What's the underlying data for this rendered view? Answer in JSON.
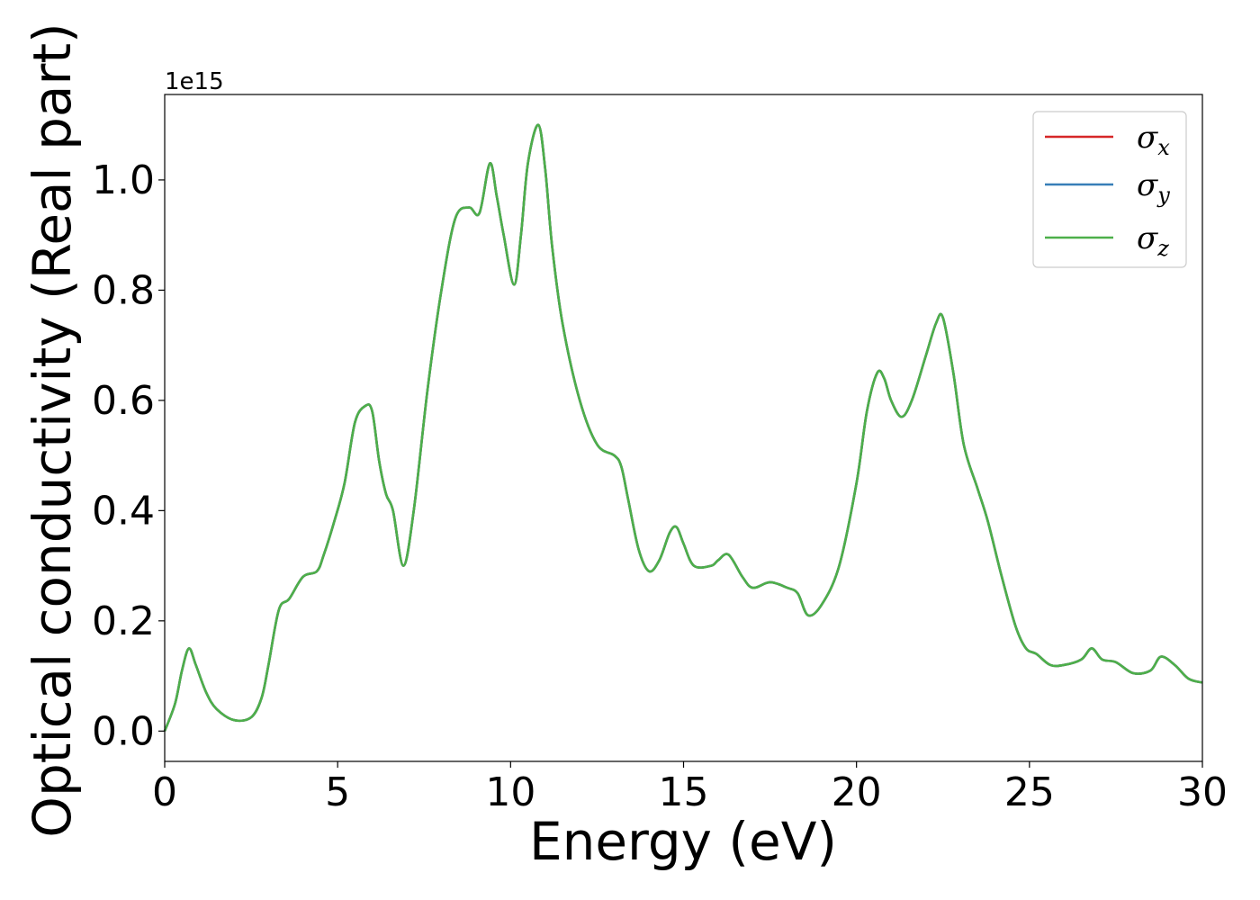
{
  "chart_data": {
    "type": "line",
    "xlabel": "Energy (eV)",
    "ylabel": "Optical conductivity (Real part)",
    "y_offset_label": "1e15",
    "xlim": [
      0,
      30
    ],
    "ylim": [
      -0.055,
      1.155
    ],
    "x_ticks": [
      0,
      5,
      10,
      15,
      20,
      25,
      30
    ],
    "x_tick_labels": [
      "0",
      "5",
      "10",
      "15",
      "20",
      "25",
      "30"
    ],
    "y_ticks": [
      0.0,
      0.2,
      0.4,
      0.6,
      0.8,
      1.0
    ],
    "y_tick_labels": [
      "0.0",
      "0.2",
      "0.4",
      "0.6",
      "0.8",
      "1.0"
    ],
    "grid": false,
    "legend_position": "top-right",
    "x": [
      0,
      0.3,
      0.5,
      0.7,
      0.9,
      1.2,
      1.5,
      2.0,
      2.5,
      2.8,
      3.0,
      3.3,
      3.6,
      4.0,
      4.4,
      4.6,
      4.9,
      5.2,
      5.5,
      5.8,
      6.0,
      6.2,
      6.4,
      6.6,
      6.9,
      7.2,
      7.6,
      8.0,
      8.4,
      8.8,
      9.1,
      9.4,
      9.6,
      9.8,
      10.1,
      10.3,
      10.5,
      10.8,
      11.0,
      11.2,
      11.5,
      12.0,
      12.5,
      13.0,
      13.2,
      13.4,
      13.7,
      14.0,
      14.3,
      14.6,
      14.8,
      15.0,
      15.3,
      15.8,
      16.0,
      16.3,
      16.7,
      17.0,
      17.5,
      18.0,
      18.3,
      18.6,
      19.0,
      19.5,
      20.0,
      20.3,
      20.6,
      20.8,
      21.0,
      21.3,
      21.6,
      22.0,
      22.3,
      22.5,
      22.8,
      23.1,
      23.5,
      23.8,
      24.2,
      24.6,
      24.9,
      25.2,
      25.6,
      26.0,
      26.5,
      26.8,
      27.1,
      27.5,
      28.0,
      28.5,
      28.8,
      29.2,
      29.6,
      30.0
    ],
    "series": [
      {
        "name": "σx",
        "symbol": "σ",
        "subscript": "x",
        "color": "#d62728",
        "values": [
          0.0,
          0.05,
          0.11,
          0.15,
          0.12,
          0.07,
          0.04,
          0.02,
          0.025,
          0.06,
          0.12,
          0.22,
          0.24,
          0.28,
          0.29,
          0.32,
          0.38,
          0.45,
          0.56,
          0.59,
          0.58,
          0.49,
          0.43,
          0.4,
          0.3,
          0.4,
          0.62,
          0.8,
          0.93,
          0.95,
          0.94,
          1.03,
          0.97,
          0.9,
          0.81,
          0.9,
          1.03,
          1.1,
          1.02,
          0.88,
          0.74,
          0.6,
          0.52,
          0.5,
          0.48,
          0.42,
          0.33,
          0.29,
          0.31,
          0.36,
          0.37,
          0.34,
          0.3,
          0.3,
          0.31,
          0.32,
          0.28,
          0.26,
          0.27,
          0.26,
          0.25,
          0.21,
          0.23,
          0.3,
          0.45,
          0.58,
          0.65,
          0.64,
          0.6,
          0.57,
          0.6,
          0.68,
          0.74,
          0.75,
          0.65,
          0.52,
          0.44,
          0.38,
          0.28,
          0.19,
          0.15,
          0.14,
          0.12,
          0.12,
          0.13,
          0.15,
          0.13,
          0.125,
          0.105,
          0.11,
          0.135,
          0.12,
          0.095,
          0.088
        ]
      },
      {
        "name": "σy",
        "symbol": "σ",
        "subscript": "y",
        "color": "#377eb8",
        "values": [
          0.0,
          0.05,
          0.11,
          0.15,
          0.12,
          0.07,
          0.04,
          0.02,
          0.025,
          0.06,
          0.12,
          0.22,
          0.24,
          0.28,
          0.29,
          0.32,
          0.38,
          0.45,
          0.56,
          0.59,
          0.58,
          0.49,
          0.43,
          0.4,
          0.3,
          0.4,
          0.62,
          0.8,
          0.93,
          0.95,
          0.94,
          1.03,
          0.97,
          0.9,
          0.81,
          0.9,
          1.03,
          1.1,
          1.02,
          0.88,
          0.74,
          0.6,
          0.52,
          0.5,
          0.48,
          0.42,
          0.33,
          0.29,
          0.31,
          0.36,
          0.37,
          0.34,
          0.3,
          0.3,
          0.31,
          0.32,
          0.28,
          0.26,
          0.27,
          0.26,
          0.25,
          0.21,
          0.23,
          0.3,
          0.45,
          0.58,
          0.65,
          0.64,
          0.6,
          0.57,
          0.6,
          0.68,
          0.74,
          0.75,
          0.65,
          0.52,
          0.44,
          0.38,
          0.28,
          0.19,
          0.15,
          0.14,
          0.12,
          0.12,
          0.13,
          0.15,
          0.13,
          0.125,
          0.105,
          0.11,
          0.135,
          0.12,
          0.095,
          0.088
        ]
      },
      {
        "name": "σz",
        "symbol": "σ",
        "subscript": "z",
        "color": "#4daf4a",
        "values": [
          0.0,
          0.05,
          0.11,
          0.15,
          0.12,
          0.07,
          0.04,
          0.02,
          0.025,
          0.06,
          0.12,
          0.22,
          0.24,
          0.28,
          0.29,
          0.32,
          0.38,
          0.45,
          0.56,
          0.59,
          0.58,
          0.49,
          0.43,
          0.4,
          0.3,
          0.4,
          0.62,
          0.8,
          0.93,
          0.95,
          0.94,
          1.03,
          0.97,
          0.9,
          0.81,
          0.9,
          1.03,
          1.1,
          1.02,
          0.88,
          0.74,
          0.6,
          0.52,
          0.5,
          0.48,
          0.42,
          0.33,
          0.29,
          0.31,
          0.36,
          0.37,
          0.34,
          0.3,
          0.3,
          0.31,
          0.32,
          0.28,
          0.26,
          0.27,
          0.26,
          0.25,
          0.21,
          0.23,
          0.3,
          0.45,
          0.58,
          0.65,
          0.64,
          0.6,
          0.57,
          0.6,
          0.68,
          0.74,
          0.75,
          0.65,
          0.52,
          0.44,
          0.38,
          0.28,
          0.19,
          0.15,
          0.14,
          0.12,
          0.12,
          0.13,
          0.15,
          0.13,
          0.125,
          0.105,
          0.11,
          0.135,
          0.12,
          0.095,
          0.088
        ]
      }
    ]
  }
}
